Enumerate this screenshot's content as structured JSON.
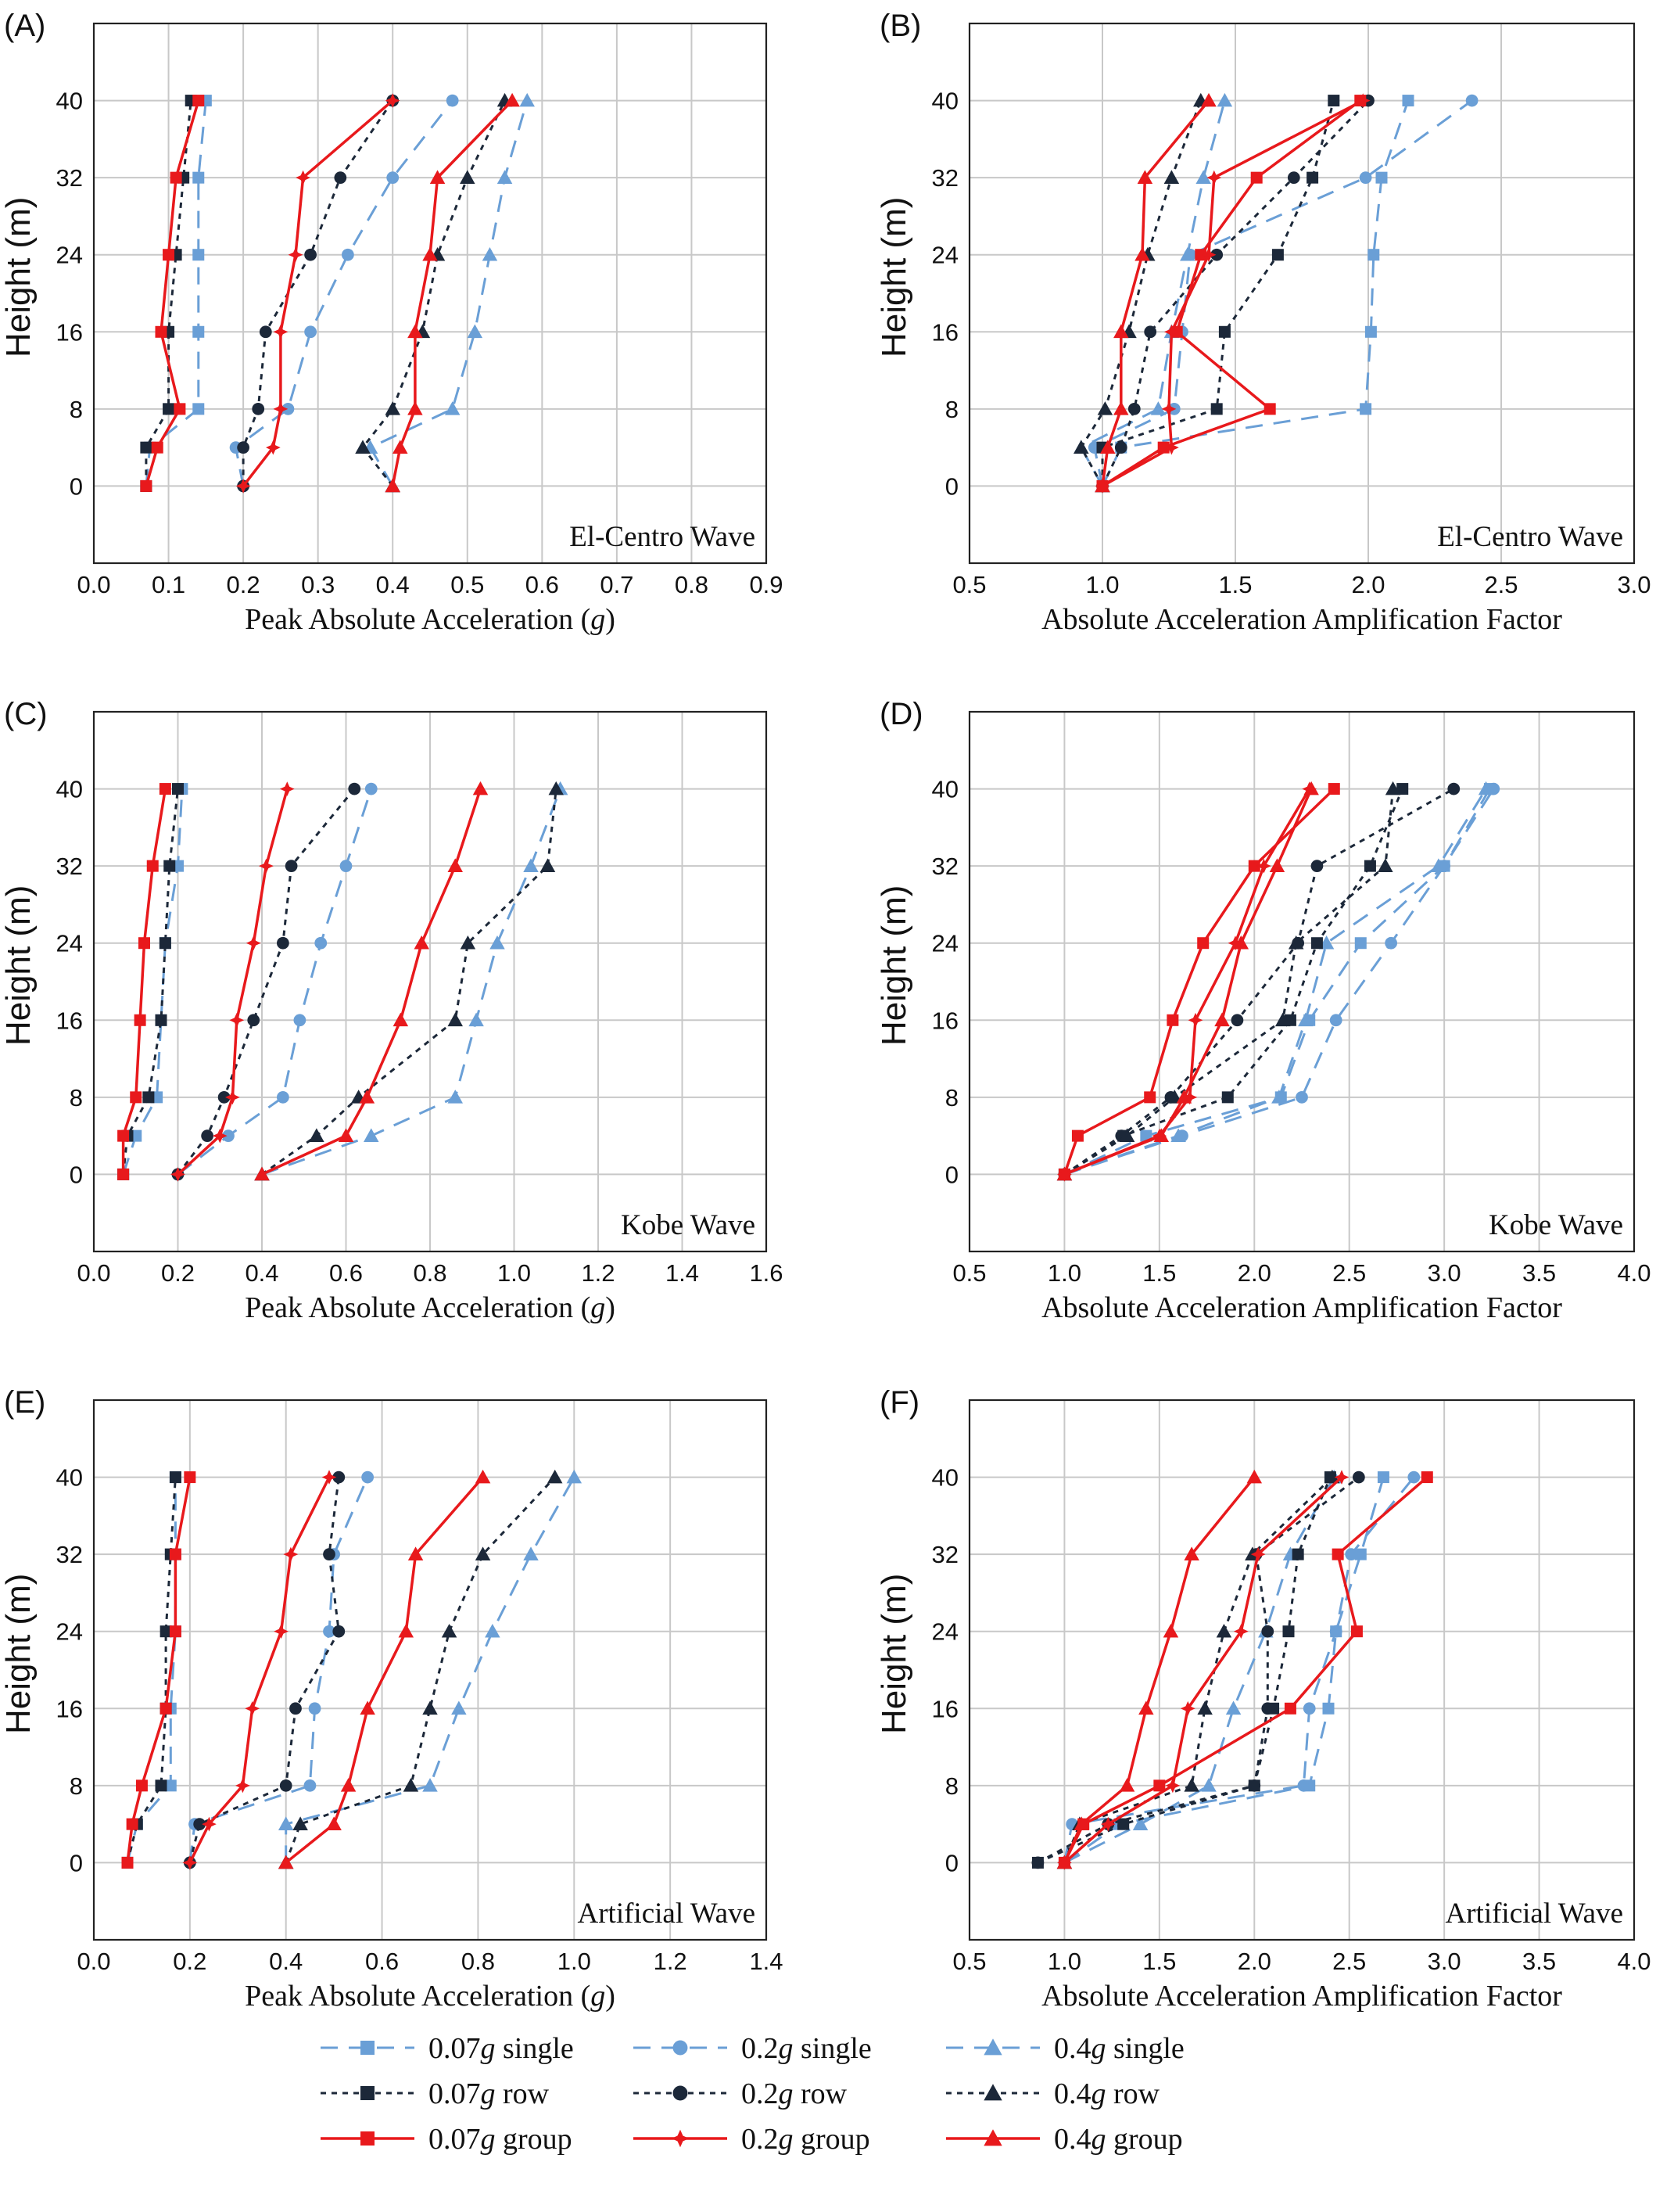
{
  "colors": {
    "single": "#6a9fd6",
    "row": "#1c2839",
    "group": "#e8191c",
    "grid": "#c8c8c8"
  },
  "legend": [
    {
      "key": "s007",
      "label_main": "0.07",
      "label_unit": "g",
      "label_rest": " single",
      "color": "#6a9fd6",
      "dash": "single",
      "marker": "square"
    },
    {
      "key": "s02",
      "label_main": "0.2",
      "label_unit": "g",
      "label_rest": " single",
      "color": "#6a9fd6",
      "dash": "single",
      "marker": "circle"
    },
    {
      "key": "s04",
      "label_main": "0.4",
      "label_unit": "g",
      "label_rest": " single",
      "color": "#6a9fd6",
      "dash": "single",
      "marker": "triangle"
    },
    {
      "key": "r007",
      "label_main": "0.07",
      "label_unit": "g",
      "label_rest": " row",
      "color": "#1c2839",
      "dash": "row",
      "marker": "square"
    },
    {
      "key": "r02",
      "label_main": "0.2",
      "label_unit": "g",
      "label_rest": " row",
      "color": "#1c2839",
      "dash": "row",
      "marker": "circle"
    },
    {
      "key": "r04",
      "label_main": "0.4",
      "label_unit": "g",
      "label_rest": " row",
      "color": "#1c2839",
      "dash": "row",
      "marker": "triangle"
    },
    {
      "key": "g007",
      "label_main": "0.07",
      "label_unit": "g",
      "label_rest": " group",
      "color": "#e8191c",
      "dash": "group",
      "marker": "square"
    },
    {
      "key": "g02",
      "label_main": "0.2",
      "label_unit": "g",
      "label_rest": " group",
      "color": "#e8191c",
      "dash": "group",
      "marker": "star"
    },
    {
      "key": "g04",
      "label_main": "0.4",
      "label_unit": "g",
      "label_rest": " group",
      "color": "#e8191c",
      "dash": "group",
      "marker": "triangle"
    }
  ],
  "chart_data": [
    {
      "id": "A",
      "panel_label": "(A)",
      "type": "line",
      "wave": "El-Centro Wave",
      "xlabel_main": "Peak Absolute Acceleration  (",
      "xlabel_unit": "g",
      "xlabel_end": ")",
      "ylabel": "Height (m)",
      "xlim": [
        0,
        0.9
      ],
      "xticks": [
        0,
        0.1,
        0.2,
        0.3,
        0.4,
        0.5,
        0.6,
        0.7,
        0.8,
        0.9
      ],
      "xtick_labels": [
        "0.0",
        "0.1",
        "0.2",
        "0.3",
        "0.4",
        "0.5",
        "0.6",
        "0.7",
        "0.8",
        "0.9"
      ],
      "ylim": [
        -8,
        48
      ],
      "yticks": [
        0,
        8,
        16,
        24,
        32,
        40
      ],
      "heights": [
        0,
        4,
        8,
        16,
        24,
        32,
        40
      ],
      "series": [
        {
          "key": "s007",
          "values": [
            0.07,
            0.075,
            0.14,
            0.14,
            0.14,
            0.14,
            0.15
          ]
        },
        {
          "key": "r007",
          "values": [
            0.07,
            0.07,
            0.1,
            0.1,
            0.11,
            0.12,
            0.13
          ]
        },
        {
          "key": "g007",
          "values": [
            0.07,
            0.085,
            0.115,
            0.09,
            0.1,
            0.11,
            0.14
          ]
        },
        {
          "key": "s02",
          "values": [
            0.2,
            0.19,
            0.26,
            0.29,
            0.34,
            0.4,
            0.48
          ]
        },
        {
          "key": "r02",
          "values": [
            0.2,
            0.2,
            0.22,
            0.23,
            0.29,
            0.33,
            0.4
          ]
        },
        {
          "key": "g02",
          "values": [
            0.2,
            0.24,
            0.25,
            0.25,
            0.27,
            0.28,
            0.4
          ]
        },
        {
          "key": "s04",
          "values": [
            0.4,
            0.37,
            0.48,
            0.51,
            0.53,
            0.55,
            0.58
          ]
        },
        {
          "key": "r04",
          "values": [
            0.4,
            0.36,
            0.4,
            0.44,
            0.46,
            0.5,
            0.55
          ]
        },
        {
          "key": "g04",
          "values": [
            0.4,
            0.41,
            0.43,
            0.43,
            0.45,
            0.46,
            0.56
          ]
        }
      ]
    },
    {
      "id": "B",
      "panel_label": "(B)",
      "type": "line",
      "wave": "El-Centro Wave",
      "xlabel_main": "Absolute Acceleration Amplification Factor",
      "xlabel_unit": "",
      "xlabel_end": "",
      "ylabel": "Height (m)",
      "xlim": [
        0.5,
        3.0
      ],
      "xticks": [
        0.5,
        1.0,
        1.5,
        2.0,
        2.5,
        3.0
      ],
      "xtick_labels": [
        "0.5",
        "1.0",
        "1.5",
        "2.0",
        "2.5",
        "3.0"
      ],
      "ylim": [
        -8,
        48
      ],
      "yticks": [
        0,
        8,
        16,
        24,
        32,
        40
      ],
      "heights": [
        0,
        4,
        8,
        16,
        24,
        32,
        40
      ],
      "series": [
        {
          "key": "s007",
          "values": [
            1.0,
            1.07,
            1.99,
            2.01,
            2.02,
            2.05,
            2.15
          ]
        },
        {
          "key": "r007",
          "values": [
            1.0,
            1.0,
            1.43,
            1.46,
            1.66,
            1.79,
            1.87
          ]
        },
        {
          "key": "g007",
          "values": [
            1.0,
            1.23,
            1.63,
            1.28,
            1.37,
            1.58,
            1.97
          ]
        },
        {
          "key": "s02",
          "values": [
            1.0,
            0.97,
            1.27,
            1.3,
            1.33,
            1.99,
            2.39
          ]
        },
        {
          "key": "r02",
          "values": [
            1.0,
            1.07,
            1.12,
            1.18,
            1.43,
            1.72,
            2.0
          ]
        },
        {
          "key": "g02",
          "values": [
            1.0,
            1.26,
            1.25,
            1.26,
            1.4,
            1.42,
            1.98
          ]
        },
        {
          "key": "s04",
          "values": [
            1.0,
            0.92,
            1.21,
            1.26,
            1.32,
            1.38,
            1.46
          ]
        },
        {
          "key": "r04",
          "values": [
            1.0,
            0.92,
            1.01,
            1.1,
            1.17,
            1.26,
            1.37
          ]
        },
        {
          "key": "g04",
          "values": [
            1.0,
            1.02,
            1.07,
            1.07,
            1.15,
            1.16,
            1.4
          ]
        }
      ]
    },
    {
      "id": "C",
      "panel_label": "(C)",
      "type": "line",
      "wave": "Kobe Wave",
      "xlabel_main": "Peak Absolute Acceleration  (",
      "xlabel_unit": "g",
      "xlabel_end": ")",
      "ylabel": "Height (m)",
      "xlim": [
        0,
        1.6
      ],
      "xticks": [
        0,
        0.2,
        0.4,
        0.6,
        0.8,
        1.0,
        1.2,
        1.4,
        1.6
      ],
      "xtick_labels": [
        "0.0",
        "0.2",
        "0.4",
        "0.6",
        "0.8",
        "1.0",
        "1.2",
        "1.4",
        "1.6"
      ],
      "ylim": [
        -8,
        48
      ],
      "yticks": [
        0,
        8,
        16,
        24,
        32,
        40
      ],
      "heights": [
        0,
        4,
        8,
        16,
        24,
        32,
        40
      ],
      "series": [
        {
          "key": "s007",
          "values": [
            0.07,
            0.1,
            0.15,
            0.16,
            0.17,
            0.2,
            0.21
          ]
        },
        {
          "key": "r007",
          "values": [
            0.07,
            0.08,
            0.13,
            0.16,
            0.17,
            0.18,
            0.2
          ]
        },
        {
          "key": "g007",
          "values": [
            0.07,
            0.07,
            0.1,
            0.11,
            0.12,
            0.14,
            0.17
          ]
        },
        {
          "key": "s02",
          "values": [
            0.2,
            0.32,
            0.45,
            0.49,
            0.54,
            0.6,
            0.66
          ]
        },
        {
          "key": "r02",
          "values": [
            0.2,
            0.27,
            0.31,
            0.38,
            0.45,
            0.47,
            0.62
          ]
        },
        {
          "key": "g02",
          "values": [
            0.2,
            0.3,
            0.33,
            0.34,
            0.38,
            0.41,
            0.46
          ]
        },
        {
          "key": "s04",
          "values": [
            0.4,
            0.66,
            0.86,
            0.91,
            0.96,
            1.04,
            1.11
          ]
        },
        {
          "key": "r04",
          "values": [
            0.4,
            0.53,
            0.63,
            0.86,
            0.89,
            1.08,
            1.1
          ]
        },
        {
          "key": "g04",
          "values": [
            0.4,
            0.6,
            0.65,
            0.73,
            0.78,
            0.86,
            0.92
          ]
        }
      ]
    },
    {
      "id": "D",
      "panel_label": "(D)",
      "type": "line",
      "wave": "Kobe Wave",
      "xlabel_main": "Absolute Acceleration Amplification Factor",
      "xlabel_unit": "",
      "xlabel_end": "",
      "ylabel": "Height (m)",
      "xlim": [
        0.5,
        4.0
      ],
      "xticks": [
        0.5,
        1.0,
        1.5,
        2.0,
        2.5,
        3.0,
        3.5,
        4.0
      ],
      "xtick_labels": [
        "0.5",
        "1.0",
        "1.5",
        "2.0",
        "2.5",
        "3.0",
        "3.5",
        "4.0"
      ],
      "ylim": [
        -8,
        48
      ],
      "yticks": [
        0,
        8,
        16,
        24,
        32,
        40
      ],
      "heights": [
        0,
        4,
        8,
        16,
        24,
        32,
        40
      ],
      "series": [
        {
          "key": "s007",
          "values": [
            1.0,
            1.43,
            2.14,
            2.29,
            2.56,
            3.0,
            3.24
          ]
        },
        {
          "key": "r007",
          "values": [
            1.0,
            1.31,
            1.86,
            2.19,
            2.33,
            2.61,
            2.78
          ]
        },
        {
          "key": "g007",
          "values": [
            1.0,
            1.07,
            1.45,
            1.57,
            1.73,
            2.0,
            2.42
          ]
        },
        {
          "key": "s02",
          "values": [
            1.0,
            1.62,
            2.25,
            2.43,
            2.72,
            3.0,
            3.26
          ]
        },
        {
          "key": "r02",
          "values": [
            1.0,
            1.3,
            1.56,
            1.91,
            2.23,
            2.33,
            3.05
          ]
        },
        {
          "key": "g02",
          "values": [
            1.0,
            1.5,
            1.66,
            1.69,
            1.9,
            2.05,
            2.29
          ]
        },
        {
          "key": "s04",
          "values": [
            1.0,
            1.6,
            2.13,
            2.27,
            2.38,
            2.97,
            3.22
          ]
        },
        {
          "key": "r04",
          "values": [
            1.0,
            1.33,
            1.58,
            2.15,
            2.22,
            2.69,
            2.73
          ]
        },
        {
          "key": "g04",
          "values": [
            1.0,
            1.51,
            1.63,
            1.83,
            1.93,
            2.12,
            2.3
          ]
        }
      ]
    },
    {
      "id": "E",
      "panel_label": "(E)",
      "type": "line",
      "wave": "Artificial Wave",
      "xlabel_main": "Peak Absolute Acceleration  (",
      "xlabel_unit": "g",
      "xlabel_end": ")",
      "ylabel": "Height (m)",
      "xlim": [
        0,
        1.4
      ],
      "xticks": [
        0,
        0.2,
        0.4,
        0.6,
        0.8,
        1.0,
        1.2,
        1.4
      ],
      "xtick_labels": [
        "0.0",
        "0.2",
        "0.4",
        "0.6",
        "0.8",
        "1.0",
        "1.2",
        "1.4"
      ],
      "ylim": [
        -8,
        48
      ],
      "yticks": [
        0,
        8,
        16,
        24,
        32,
        40
      ],
      "heights": [
        0,
        4,
        8,
        16,
        24,
        32,
        40
      ],
      "series": [
        {
          "key": "s007",
          "values": [
            0.07,
            0.09,
            0.16,
            0.16,
            0.17,
            0.17,
            0.17
          ]
        },
        {
          "key": "r007",
          "values": [
            0.07,
            0.09,
            0.14,
            0.15,
            0.15,
            0.16,
            0.17
          ]
        },
        {
          "key": "g007",
          "values": [
            0.07,
            0.08,
            0.1,
            0.15,
            0.17,
            0.17,
            0.2
          ]
        },
        {
          "key": "s02",
          "values": [
            0.2,
            0.21,
            0.45,
            0.46,
            0.49,
            0.5,
            0.57
          ]
        },
        {
          "key": "r02",
          "values": [
            0.2,
            0.22,
            0.4,
            0.42,
            0.51,
            0.49,
            0.51
          ]
        },
        {
          "key": "g02",
          "values": [
            0.2,
            0.24,
            0.31,
            0.33,
            0.39,
            0.41,
            0.49
          ]
        },
        {
          "key": "s04",
          "values": [
            0.4,
            0.4,
            0.7,
            0.76,
            0.83,
            0.91,
            1.0
          ]
        },
        {
          "key": "r04",
          "values": [
            0.4,
            0.43,
            0.66,
            0.7,
            0.74,
            0.81,
            0.96
          ]
        },
        {
          "key": "g04",
          "values": [
            0.4,
            0.5,
            0.53,
            0.57,
            0.65,
            0.67,
            0.81
          ]
        }
      ]
    },
    {
      "id": "F",
      "panel_label": "(F)",
      "type": "line",
      "wave": "Artificial Wave",
      "xlabel_main": "Absolute Acceleration Amplification Factor",
      "xlabel_unit": "",
      "xlabel_end": "",
      "ylabel": "Height (m)",
      "xlim": [
        0.5,
        4.0
      ],
      "xticks": [
        0.5,
        1.0,
        1.5,
        2.0,
        2.5,
        3.0,
        3.5,
        4.0
      ],
      "xtick_labels": [
        "0.5",
        "1.0",
        "1.5",
        "2.0",
        "2.5",
        "3.0",
        "3.5",
        "4.0"
      ],
      "ylim": [
        -8,
        48
      ],
      "yticks": [
        0,
        8,
        16,
        24,
        32,
        40
      ],
      "heights": [
        0,
        4,
        8,
        16,
        24,
        32,
        40
      ],
      "series": [
        {
          "key": "s007",
          "values": [
            1.0,
            1.29,
            2.29,
            2.39,
            2.43,
            2.56,
            2.68
          ]
        },
        {
          "key": "r007",
          "values": [
            0.86,
            1.31,
            2.0,
            2.1,
            2.18,
            2.23,
            2.4
          ]
        },
        {
          "key": "g007",
          "values": [
            1.0,
            1.1,
            1.5,
            2.19,
            2.54,
            2.44,
            2.91
          ]
        },
        {
          "key": "s02",
          "values": [
            1.0,
            1.04,
            2.26,
            2.29,
            2.43,
            2.51,
            2.84
          ]
        },
        {
          "key": "r02",
          "values": [
            0.86,
            1.23,
            2.0,
            2.07,
            2.07,
            2.01,
            2.55
          ]
        },
        {
          "key": "g02",
          "values": [
            1.0,
            1.23,
            1.57,
            1.65,
            1.93,
            2.02,
            2.46
          ]
        },
        {
          "key": "s04",
          "values": [
            1.0,
            1.4,
            1.76,
            1.89,
            2.06,
            2.19,
            2.42
          ]
        },
        {
          "key": "r04",
          "values": [
            1.0,
            1.08,
            1.67,
            1.74,
            1.84,
            1.99,
            2.41
          ]
        },
        {
          "key": "g04",
          "values": [
            1.0,
            1.09,
            1.33,
            1.43,
            1.56,
            1.67,
            2.0
          ]
        }
      ]
    }
  ]
}
